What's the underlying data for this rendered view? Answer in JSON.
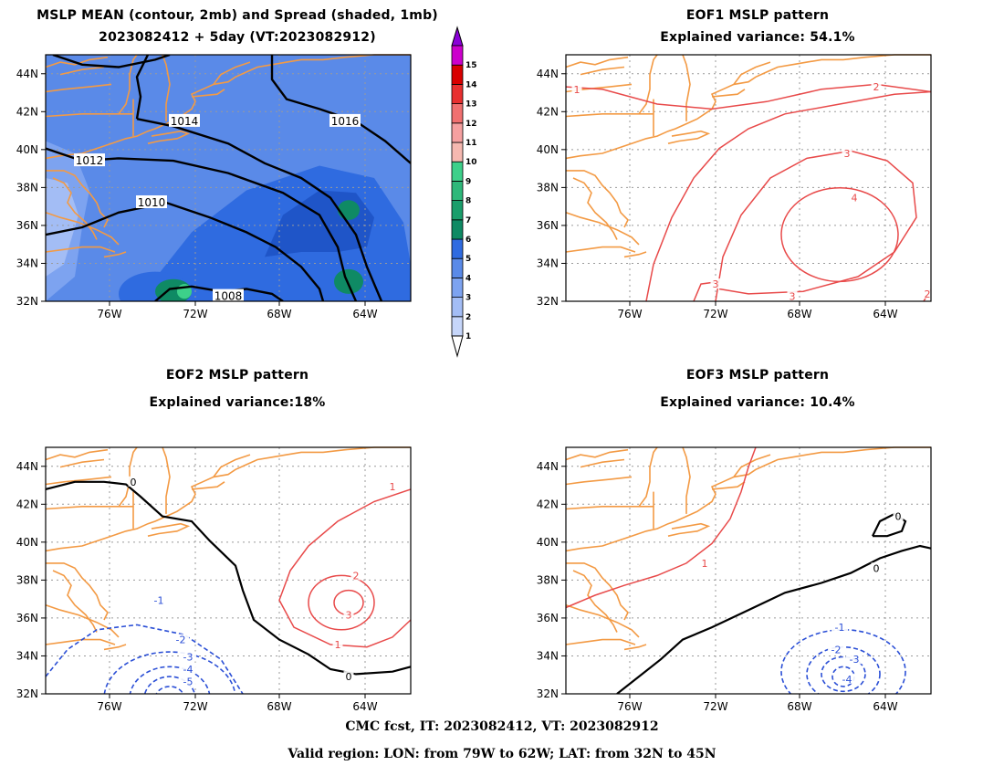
{
  "region": {
    "lon": [
      -79,
      -62
    ],
    "lat": [
      32,
      45
    ]
  },
  "axes": {
    "lat_ticks": [
      "32N",
      "34N",
      "36N",
      "38N",
      "40N",
      "42N",
      "44N"
    ],
    "lon_ticks": [
      "76W",
      "72W",
      "68W",
      "64W"
    ]
  },
  "colors": {
    "coast": "#f39a44",
    "mean_contour": "#000000",
    "positive_contour": "#e84a4a",
    "negative_contour": "#2b4fd6",
    "grid": "#9a9a9a"
  },
  "panels": [
    {
      "id": "mean",
      "title_line1": "MSLP MEAN (contour, 2mb) and Spread (shaded, 1mb)",
      "title_line2": "2023082412 + 5day (VT:2023082912)",
      "contour_labels": [
        "1016",
        "1014",
        "1012",
        "1010",
        "1008"
      ]
    },
    {
      "id": "eof1",
      "title_line1": "EOF1 MSLP pattern",
      "title_line2": "Explained variance: 54.1%",
      "contour_labels": [
        "1",
        "2",
        "3",
        "4",
        "3",
        "3",
        "2"
      ]
    },
    {
      "id": "eof2",
      "title_line1": "EOF2 MSLP pattern",
      "title_line2": "Explained variance:18%",
      "contour_labels": [
        "0",
        "1",
        "2",
        "3",
        "1",
        "0",
        "-1",
        "-2",
        "-3",
        "-4",
        "-5"
      ]
    },
    {
      "id": "eof3",
      "title_line1": "EOF3 MSLP pattern",
      "title_line2": "Explained variance: 10.4%",
      "contour_labels": [
        "0",
        "0",
        "1",
        "-1",
        "-2",
        "-3",
        "-4"
      ]
    }
  ],
  "colorbar": {
    "labels": [
      "1",
      "2",
      "3",
      "4",
      "5",
      "6",
      "7",
      "8",
      "9",
      "10",
      "11",
      "12",
      "13",
      "14",
      "15"
    ],
    "colors": [
      "#c6d6fa",
      "#a3bdf5",
      "#7da3f0",
      "#5a8ae8",
      "#2f6be0",
      "#0f8a64",
      "#1a9e6b",
      "#2eb87a",
      "#3dd08a",
      "#f5b8b0",
      "#f5a0a0",
      "#f07070",
      "#e83030",
      "#d80000",
      "#cc00cc",
      "#8a00d8"
    ]
  },
  "footer": {
    "line1": "CMC fcst, IT: 2023082412, VT: 2023082912",
    "line2": "Valid region: LON: from 79W to 62W; LAT: from 32N to 45N"
  }
}
